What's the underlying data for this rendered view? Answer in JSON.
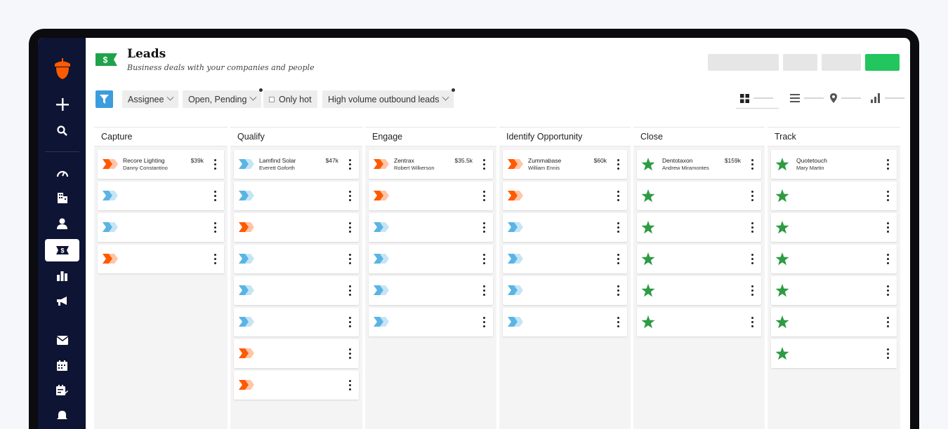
{
  "app": {
    "title": "Leads",
    "subtitle": "Business deals with your companies and people",
    "deal_symbol": "$"
  },
  "sidebar": {
    "items": [
      {
        "icon": "acorn-logo-icon"
      },
      {
        "icon": "plus-icon"
      },
      {
        "icon": "search-icon"
      },
      {
        "icon": "dashboard-gauge-icon"
      },
      {
        "icon": "companies-building-icon"
      },
      {
        "icon": "person-icon"
      },
      {
        "icon": "deals-money-icon",
        "active": true
      },
      {
        "icon": "reports-bar-chart-icon"
      },
      {
        "icon": "campaigns-megaphone-icon"
      },
      {
        "icon": "email-envelope-icon"
      },
      {
        "icon": "calendar-icon"
      },
      {
        "icon": "tasks-calendar-edit-icon"
      },
      {
        "icon": "notifications-icon"
      }
    ]
  },
  "filters": {
    "assignee": "Assignee",
    "status": "Open, Pending",
    "only_hot": "Only hot",
    "pipeline": "High volume outbound leads"
  },
  "views": [
    "board-view-icon",
    "list-view-icon",
    "map-pin-icon",
    "chart-view-icon"
  ],
  "colors": {
    "accent": "#22c55e",
    "sidebar": "#0e1433",
    "hot": "#ff5a00",
    "cold": "#5ab4e5",
    "star": "#2e9b43",
    "filter": "#3b9ddd"
  },
  "columns": [
    {
      "title": "Capture",
      "cards": [
        {
          "name": "Recore Lighting",
          "person": "Danny Constantino",
          "value": "$39k",
          "icon": "hot"
        },
        {
          "icon": "cold"
        },
        {
          "icon": "cold"
        },
        {
          "icon": "hot"
        }
      ]
    },
    {
      "title": "Qualify",
      "cards": [
        {
          "name": "Lamfind Solar",
          "person": "Everett Goforth",
          "value": "$47k",
          "icon": "cold"
        },
        {
          "icon": "cold"
        },
        {
          "icon": "hot"
        },
        {
          "icon": "cold"
        },
        {
          "icon": "cold"
        },
        {
          "icon": "cold"
        },
        {
          "icon": "hot"
        },
        {
          "icon": "hot"
        }
      ]
    },
    {
      "title": "Engage",
      "cards": [
        {
          "name": "Zentrax",
          "person": "Robert Wilkerson",
          "value": "$35.5k",
          "icon": "hot"
        },
        {
          "icon": "hot"
        },
        {
          "icon": "cold"
        },
        {
          "icon": "cold"
        },
        {
          "icon": "cold"
        },
        {
          "icon": "cold"
        }
      ]
    },
    {
      "title": "Identify Opportunity",
      "cards": [
        {
          "name": "Zummabase",
          "person": "William Ennis",
          "value": "$60k",
          "icon": "hot"
        },
        {
          "icon": "hot"
        },
        {
          "icon": "cold"
        },
        {
          "icon": "cold"
        },
        {
          "icon": "cold"
        },
        {
          "icon": "cold"
        }
      ]
    },
    {
      "title": "Close",
      "cards": [
        {
          "name": "Dentotaxon",
          "person": "Andrew Miramontes",
          "value": "$159k",
          "icon": "star"
        },
        {
          "icon": "star"
        },
        {
          "icon": "star"
        },
        {
          "icon": "star"
        },
        {
          "icon": "star"
        },
        {
          "icon": "star"
        }
      ]
    },
    {
      "title": "Track",
      "cards": [
        {
          "name": "Quotetouch",
          "person": "Mary Martin",
          "icon": "star"
        },
        {
          "icon": "star"
        },
        {
          "icon": "star"
        },
        {
          "icon": "star"
        },
        {
          "icon": "star"
        },
        {
          "icon": "star"
        },
        {
          "icon": "star"
        }
      ]
    }
  ]
}
